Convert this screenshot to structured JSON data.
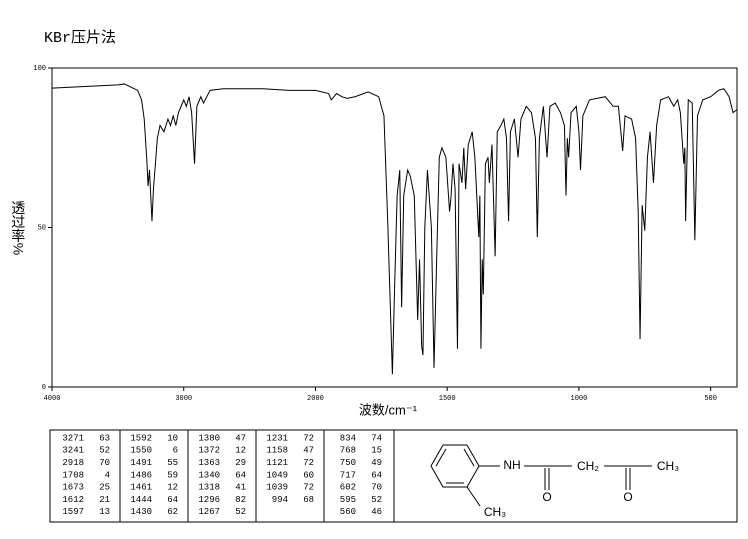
{
  "chart_data": {
    "type": "line",
    "title": "KBr压片法",
    "x_label": "波数/cm⁻¹",
    "y_label": "透过率%",
    "color": "#000000",
    "xlim": [
      4000,
      400
    ],
    "xbreak": 2000,
    "xticks": [
      4000,
      3000,
      2000,
      1500,
      1000,
      500
    ],
    "ylim": [
      0,
      100
    ],
    "yticks": [
      0,
      50,
      100
    ],
    "x": [
      4000,
      3500,
      3450,
      3400,
      3350,
      3320,
      3300,
      3280,
      3271,
      3260,
      3241,
      3230,
      3200,
      3180,
      3150,
      3120,
      3100,
      3080,
      3060,
      3040,
      3000,
      2980,
      2960,
      2940,
      2918,
      2900,
      2870,
      2850,
      2800,
      2700,
      2600,
      2400,
      2200,
      2000,
      1950,
      1940,
      1920,
      1900,
      1880,
      1850,
      1800,
      1760,
      1740,
      1725,
      1708,
      1700,
      1690,
      1680,
      1673,
      1665,
      1650,
      1640,
      1625,
      1612,
      1605,
      1597,
      1592,
      1585,
      1575,
      1560,
      1550,
      1540,
      1530,
      1520,
      1505,
      1491,
      1486,
      1478,
      1470,
      1461,
      1455,
      1444,
      1437,
      1430,
      1420,
      1405,
      1395,
      1380,
      1376,
      1372,
      1367,
      1363,
      1355,
      1345,
      1340,
      1330,
      1318,
      1310,
      1296,
      1285,
      1275,
      1267,
      1260,
      1245,
      1231,
      1220,
      1200,
      1180,
      1165,
      1158,
      1150,
      1135,
      1121,
      1110,
      1090,
      1070,
      1055,
      1049,
      1044,
      1039,
      1030,
      1010,
      1000,
      994,
      985,
      960,
      900,
      870,
      850,
      834,
      825,
      800,
      785,
      775,
      768,
      760,
      750,
      740,
      730,
      717,
      705,
      690,
      660,
      640,
      625,
      615,
      602,
      598,
      595,
      585,
      570,
      560,
      550,
      530,
      500,
      470,
      450,
      430,
      415,
      400
    ],
    "values": [
      93.7,
      94.7,
      95,
      94,
      93,
      90,
      84,
      71,
      63,
      68,
      52,
      62,
      78,
      82,
      80,
      84,
      82,
      85,
      82,
      86,
      90,
      88,
      91,
      86,
      70,
      88,
      91,
      89,
      93,
      93.5,
      93.5,
      93.5,
      93,
      93,
      92,
      90,
      92,
      91,
      90.5,
      91,
      92.5,
      91,
      85,
      50,
      4,
      30,
      60,
      68,
      25,
      60,
      68,
      66,
      60,
      21,
      40,
      13,
      10,
      50,
      68,
      50,
      6,
      40,
      72,
      75,
      72,
      55,
      59,
      70,
      62,
      12,
      70,
      64,
      75,
      62,
      76,
      80,
      72,
      47,
      60,
      12,
      40,
      29,
      70,
      72,
      64,
      76,
      41,
      80,
      82,
      84,
      78,
      52,
      80,
      84,
      72,
      84,
      88,
      86,
      78,
      47,
      78,
      88,
      72,
      88,
      89,
      86,
      82,
      60,
      78,
      72,
      86,
      88,
      80,
      68,
      85,
      90,
      91,
      88,
      88,
      74,
      85,
      84,
      78,
      55,
      15,
      57,
      49,
      72,
      80,
      64,
      82,
      90,
      91,
      88,
      90,
      86,
      70,
      75,
      52,
      90,
      89,
      46,
      85,
      90,
      91,
      93,
      93.5,
      91,
      86,
      87
    ]
  },
  "peak_table": {
    "columns": [
      [
        [
          3271,
          63
        ],
        [
          3241,
          52
        ],
        [
          2918,
          70
        ],
        [
          1708,
          4
        ],
        [
          1673,
          25
        ],
        [
          1612,
          21
        ],
        [
          1597,
          13
        ]
      ],
      [
        [
          1592,
          10
        ],
        [
          1550,
          6
        ],
        [
          1491,
          55
        ],
        [
          1486,
          59
        ],
        [
          1461,
          12
        ],
        [
          1444,
          64
        ],
        [
          1430,
          62
        ]
      ],
      [
        [
          1380,
          47
        ],
        [
          1372,
          12
        ],
        [
          1363,
          29
        ],
        [
          1340,
          64
        ],
        [
          1318,
          41
        ],
        [
          1296,
          82
        ],
        [
          1267,
          52
        ]
      ],
      [
        [
          1231,
          72
        ],
        [
          1158,
          47
        ],
        [
          1121,
          72
        ],
        [
          1049,
          60
        ],
        [
          1039,
          72
        ],
        [
          994,
          68
        ]
      ],
      [
        [
          834,
          74
        ],
        [
          768,
          15
        ],
        [
          750,
          49
        ],
        [
          717,
          64
        ],
        [
          602,
          70
        ],
        [
          595,
          52
        ],
        [
          560,
          46
        ]
      ]
    ]
  },
  "structure": {
    "labels": [
      "NH",
      "CH₂",
      "CH₃",
      "O",
      "O",
      "CH₃"
    ]
  }
}
